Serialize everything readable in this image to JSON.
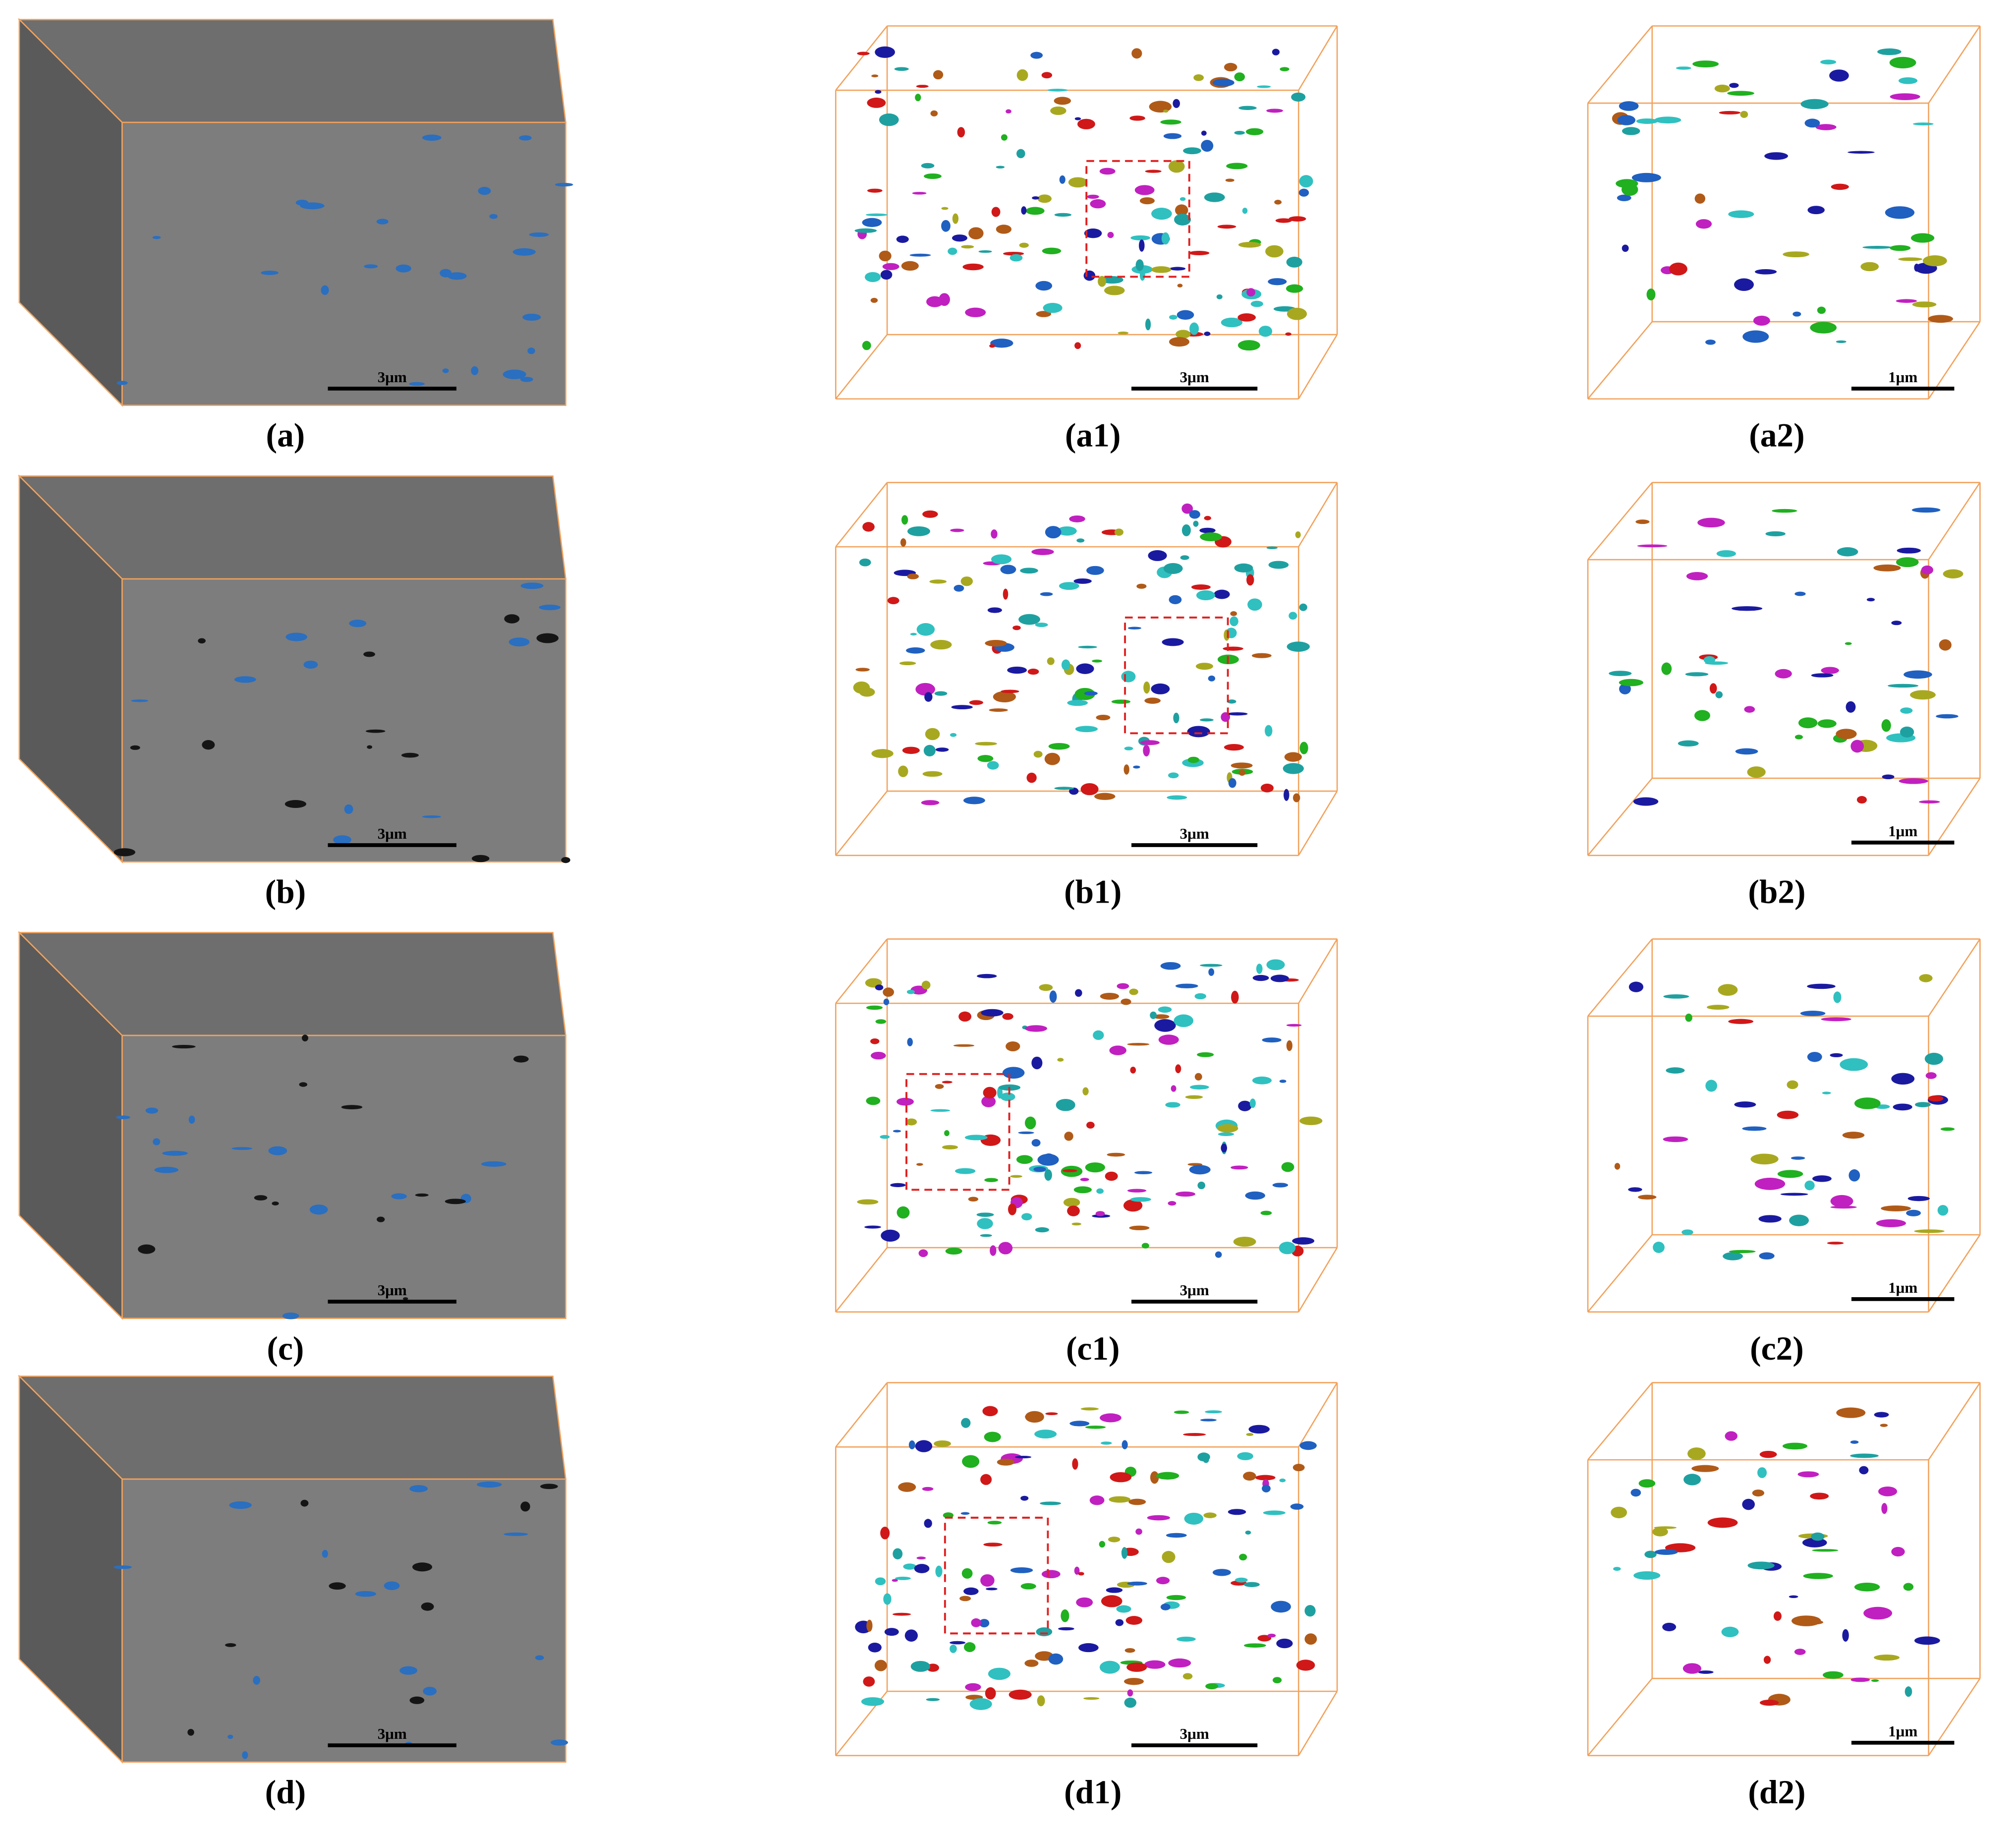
{
  "figure": {
    "panels": [
      {
        "label": "(a)",
        "scale_bar": "3μm"
      },
      {
        "label": "(a1)",
        "scale_bar": "3μm"
      },
      {
        "label": "(a2)",
        "scale_bar": "1μm"
      },
      {
        "label": "(b)",
        "scale_bar": "3μm"
      },
      {
        "label": "(b1)",
        "scale_bar": "3μm"
      },
      {
        "label": "(b2)",
        "scale_bar": "1μm"
      },
      {
        "label": "(c)",
        "scale_bar": "3μm"
      },
      {
        "label": "(c1)",
        "scale_bar": "3μm"
      },
      {
        "label": "(c2)",
        "scale_bar": "1μm"
      },
      {
        "label": "(d)",
        "scale_bar": "3μm"
      },
      {
        "label": "(d1)",
        "scale_bar": "3μm"
      },
      {
        "label": "(d2)",
        "scale_bar": "1μm"
      }
    ]
  }
}
